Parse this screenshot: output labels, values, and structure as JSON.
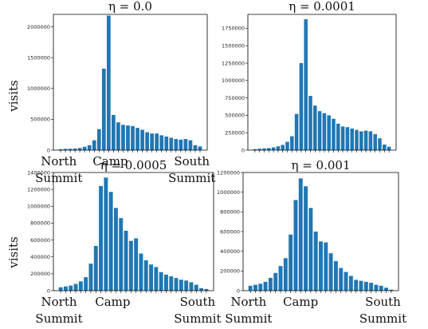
{
  "chart_data": [
    {
      "type": "bar",
      "title": "η = 0.0",
      "ylabel": "visits",
      "ylim": [
        0,
        2200000
      ],
      "yticks": [
        0,
        500000,
        1000000,
        1500000,
        2000000
      ],
      "category_labels": [
        "North\nSummit",
        "Camp",
        "South\nSummit"
      ],
      "values": [
        15000,
        20000,
        22000,
        25000,
        35000,
        55000,
        80000,
        160000,
        340000,
        1320000,
        2180000,
        570000,
        450000,
        410000,
        400000,
        390000,
        360000,
        330000,
        290000,
        270000,
        270000,
        240000,
        220000,
        200000,
        180000,
        170000,
        180000,
        160000,
        80000,
        60000
      ]
    },
    {
      "type": "bar",
      "title": "η = 0.0001",
      "ylabel": "",
      "ylim": [
        0,
        1950000
      ],
      "yticks": [
        0,
        250000,
        500000,
        750000,
        1000000,
        1250000,
        1500000,
        1750000
      ],
      "category_labels": [],
      "values": [
        15000,
        20000,
        25000,
        30000,
        40000,
        55000,
        75000,
        120000,
        200000,
        520000,
        1250000,
        1880000,
        780000,
        640000,
        560000,
        530000,
        500000,
        450000,
        380000,
        340000,
        330000,
        310000,
        290000,
        270000,
        280000,
        270000,
        230000,
        170000,
        80000,
        50000
      ]
    },
    {
      "type": "bar",
      "title": "η = 0.0005",
      "ylabel": "visits",
      "ylim": [
        0,
        1400000
      ],
      "yticks": [
        0,
        200000,
        400000,
        600000,
        800000,
        1000000,
        1200000,
        1400000
      ],
      "category_labels": [
        "North\nSummit",
        "Camp",
        "South\nSummit"
      ],
      "values": [
        40000,
        50000,
        60000,
        80000,
        110000,
        160000,
        320000,
        530000,
        1240000,
        1340000,
        1170000,
        980000,
        860000,
        710000,
        590000,
        620000,
        440000,
        360000,
        310000,
        280000,
        220000,
        190000,
        170000,
        150000,
        130000,
        120000,
        100000,
        70000,
        30000,
        20000
      ]
    },
    {
      "type": "bar",
      "title": "η = 0.001",
      "ylabel": "",
      "ylim": [
        0,
        1200000
      ],
      "yticks": [
        0,
        200000,
        400000,
        600000,
        800000,
        1000000,
        1200000
      ],
      "category_labels": [
        "North\nSummit",
        "Camp",
        "South\nSummit"
      ],
      "values": [
        50000,
        60000,
        70000,
        90000,
        130000,
        180000,
        250000,
        330000,
        570000,
        920000,
        1140000,
        1060000,
        840000,
        600000,
        500000,
        490000,
        380000,
        300000,
        230000,
        190000,
        150000,
        110000,
        100000,
        90000,
        80000,
        60000,
        50000,
        30000,
        10000
      ]
    }
  ]
}
